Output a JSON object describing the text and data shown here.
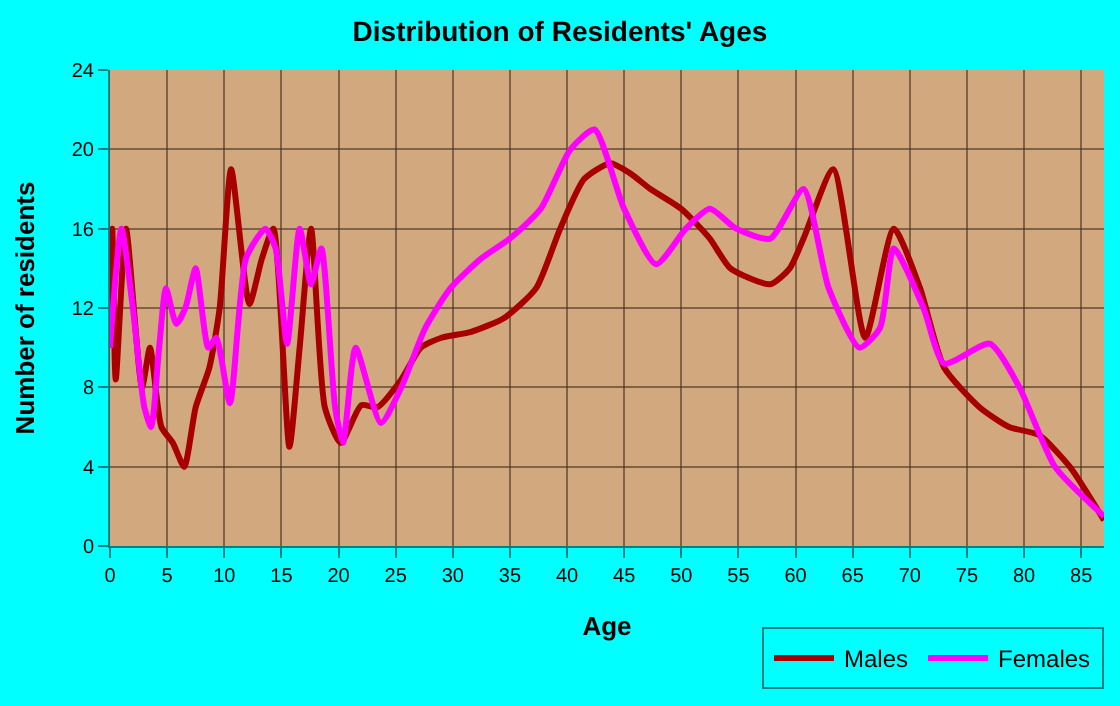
{
  "chart_data": {
    "type": "line",
    "title": "Distribution of Residents' Ages",
    "xlabel": "Age",
    "ylabel": "Number of residents",
    "xlim": [
      0,
      87
    ],
    "xticks": [
      0,
      5,
      10,
      15,
      20,
      25,
      30,
      35,
      40,
      45,
      50,
      55,
      60,
      65,
      70,
      75,
      80,
      85
    ],
    "ylim": [
      0,
      24
    ],
    "yticks": [
      0,
      4,
      8,
      12,
      16,
      20,
      24
    ],
    "grid": true,
    "legend": "bottom right",
    "marker": "none",
    "line_style": "solid",
    "series": [
      {
        "name": "Males",
        "color": "#a80000",
        "x": [
          0,
          0.2,
          0.5,
          1.4,
          2.8,
          3.5,
          4.5,
          5.5,
          6.5,
          7.5,
          8.7,
          9.6,
          10.6,
          12.2,
          13.3,
          14.3,
          15.7,
          16.6,
          17.6,
          18.8,
          20.2,
          22,
          23.4,
          25.5,
          27.2,
          29,
          31.6,
          34.5,
          37.3,
          39.4,
          41.5,
          43.8,
          45.5,
          47.3,
          50,
          52.5,
          54.3,
          57.8,
          59.5,
          60.7,
          63.3,
          66.1,
          68.6,
          70.9,
          73,
          76.1,
          78.7,
          81.3,
          84,
          87
        ],
        "values": [
          10,
          16,
          8.4,
          16,
          8,
          10,
          6,
          5.2,
          4,
          7,
          9,
          12,
          19,
          12.2,
          14.5,
          16,
          5,
          10,
          16,
          7,
          5.2,
          7.1,
          7,
          8.4,
          10,
          10.5,
          10.8,
          11.5,
          13,
          16,
          18.5,
          19.3,
          18.8,
          18,
          17,
          15.5,
          14,
          13.2,
          14,
          15.5,
          19,
          10.5,
          16,
          13,
          9,
          7,
          6,
          5.6,
          4,
          1.3
        ]
      },
      {
        "name": "Females",
        "color": "#ff00ff",
        "x": [
          0,
          1,
          2,
          3,
          3.6,
          4.3,
          4.9,
          5.8,
          6.6,
          7.5,
          8.6,
          9.3,
          10.5,
          11.9,
          13.6,
          14.5,
          15.5,
          16.6,
          17.6,
          18.5,
          19.7,
          20.4,
          21.5,
          23.7,
          25.5,
          27.6,
          29.8,
          32.5,
          35,
          37.7,
          40.3,
          42.4,
          45,
          47.8,
          50.4,
          52.5,
          54.8,
          57.8,
          60.7,
          62.9,
          65.6,
          67.4,
          68.6,
          71.2,
          73,
          77,
          79.6,
          82.7,
          87
        ],
        "values": [
          10,
          16,
          12,
          7,
          6,
          10,
          13,
          11.2,
          12,
          14,
          10,
          10.5,
          7.2,
          14.5,
          16,
          15,
          10.2,
          16,
          13.2,
          15,
          7,
          5.2,
          10,
          6.2,
          8,
          11,
          13,
          14.5,
          15.5,
          17,
          20,
          21,
          17,
          14.2,
          16,
          17,
          16,
          15.5,
          18,
          13,
          10,
          11,
          15,
          12,
          9.2,
          10.2,
          8,
          4,
          1.5
        ]
      }
    ]
  }
}
